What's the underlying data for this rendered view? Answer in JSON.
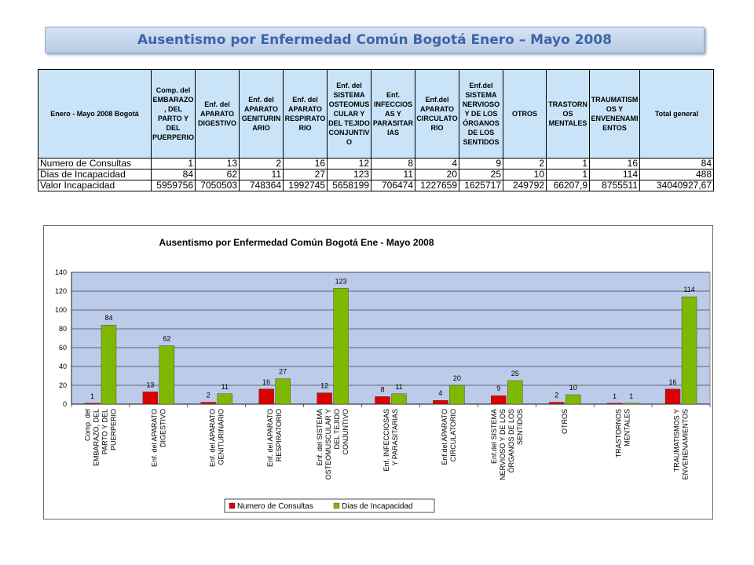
{
  "page_title": "Ausentismo por Enfermedad Común Bogotá Enero – Mayo 2008",
  "table": {
    "corner_header": "Enero - Mayo 2008 Bogotá",
    "columns": [
      "Comp. del EMBARAZO, DEL PARTO Y DEL PUERPERIO",
      "Enf. del APARATO DIGESTIVO",
      "Enf. del APARATO GENITURINARIO",
      "Enf. del APARATO RESPIRATORIO",
      "Enf. del SISTEMA OSTEOMUSCULAR Y DEL TEJIDO CONJUNTIVO",
      "Enf. INFECCIOSAS Y PARASITARIAS",
      "Enf.del APARATO CIRCULATORIO",
      "Enf.del SISTEMA NERVIOSO Y DE LOS ÓRGANOS DE LOS SENTIDOS",
      "OTROS",
      "TRASTORNOS MENTALES",
      "TRAUMATISMOS Y ENVENENAMIENTOS",
      "Total general"
    ],
    "rows": [
      {
        "label": "Numero de Consultas",
        "values": [
          "1",
          "13",
          "2",
          "16",
          "12",
          "8",
          "4",
          "9",
          "2",
          "1",
          "16",
          "84"
        ]
      },
      {
        "label": "Dias de Incapacidad",
        "values": [
          "84",
          "62",
          "11",
          "27",
          "123",
          "11",
          "20",
          "25",
          "10",
          "1",
          "114",
          "488"
        ]
      },
      {
        "label": "Valor Incapacidad",
        "values": [
          "5959756",
          "7050503",
          "748364",
          "1992745",
          "5658199",
          "706474",
          "1227659",
          "1625717",
          "249792",
          "66207,9",
          "8755511",
          "34040927,67"
        ]
      }
    ]
  },
  "chart_data": {
    "type": "bar",
    "title": "Ausentismo por Enfermedad Común Bogotá Ene - Mayo 2008",
    "categories": [
      "Comp. del EMBARAZO, DEL PARTO Y DEL PUERPERIO",
      "Enf. del APARATO DIGESTIVO",
      "Enf. del APARATO GENITURINARIO",
      "Enf. del APARATO RESPIRATORIO",
      "Enf. del SISTEMA OSTEOMUSCULAR Y DEL TEJIDO CONJUNTIVO",
      "Enf. INFECCIOSAS Y PARASITARIAS",
      "Enf.del APARATO CIRCULATORIO",
      "Enf.del SISTEMA NERVIOSO Y DE LOS ÓRGANOS DE LOS SENTIDOS",
      "OTROS",
      "TRASTORNOS MENTALES",
      "TRAUMATISMOS Y ENVENENAMIENTOS"
    ],
    "series": [
      {
        "name": "Numero de Consultas",
        "values": [
          1,
          13,
          2,
          16,
          12,
          8,
          4,
          9,
          2,
          1,
          16
        ],
        "color": "#dd0000"
      },
      {
        "name": "Dias de Incapacidad",
        "values": [
          84,
          62,
          11,
          27,
          123,
          11,
          20,
          25,
          10,
          1,
          114
        ],
        "color": "#7fb800"
      }
    ],
    "ylim": [
      0,
      140
    ],
    "yticks": [
      0,
      20,
      40,
      60,
      80,
      100,
      120,
      140
    ],
    "grid": true,
    "legend": "bottom",
    "plot_background": "#bccbe9"
  }
}
